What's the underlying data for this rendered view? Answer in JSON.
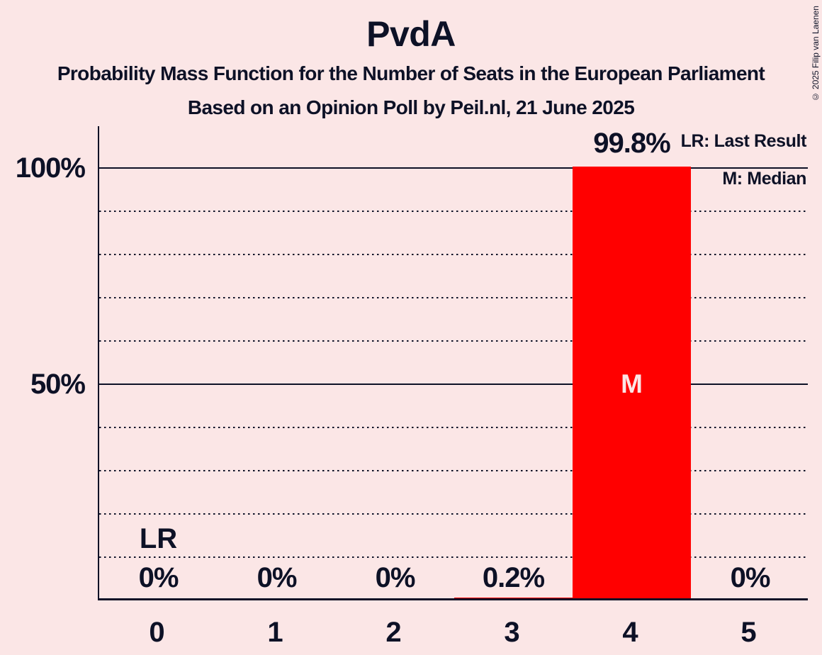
{
  "copyright": "© 2025 Filip van Laenen",
  "chart_data": {
    "type": "bar",
    "title": "PvdA",
    "subtitle": "Probability Mass Function for the Number of Seats in the European Parliament",
    "source": "Based on an Opinion Poll by Peil.nl, 21 June 2025",
    "categories": [
      "0",
      "1",
      "2",
      "3",
      "4",
      "5"
    ],
    "values": [
      0,
      0,
      0,
      0.2,
      99.8,
      0
    ],
    "value_labels": [
      "0%",
      "0%",
      "0%",
      "0.2%",
      "99.8%",
      "0%"
    ],
    "xlabel": "",
    "ylabel": "",
    "ylim_pct": [
      0,
      109
    ],
    "yticks": [
      {
        "pct": 100,
        "label": "100%"
      },
      {
        "pct": 50,
        "label": "50%"
      }
    ],
    "major_grid_pct": [
      100,
      50
    ],
    "minor_grid_pct": [
      90,
      80,
      70,
      60,
      40,
      30,
      20,
      10
    ],
    "grid": "dotted minor lines every 10%, solid lines at 50% and 100%",
    "legend_position": "top-right",
    "legend": [
      {
        "key": "LR",
        "label": "LR: Last Result"
      },
      {
        "key": "M",
        "label": "M: Median"
      }
    ],
    "annotations": [
      {
        "text": "LR",
        "meaning": "Last Result",
        "category_index": 0
      },
      {
        "text": "M",
        "meaning": "Median",
        "category_index": 4
      }
    ],
    "colors": {
      "bar": "#ff0000",
      "background": "#fbe6e6",
      "ink": "#0d1126",
      "bar_marker_text": "#fbe6e6"
    }
  }
}
